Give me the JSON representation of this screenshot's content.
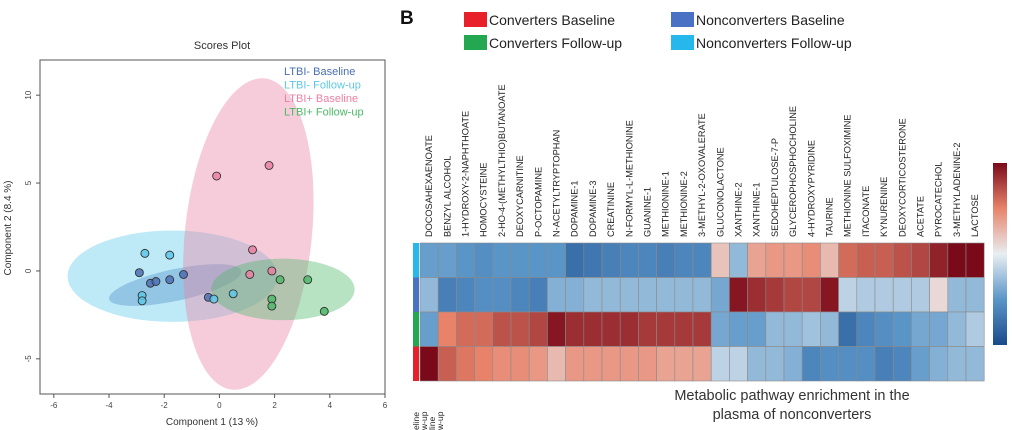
{
  "scores_plot": {
    "title": "Scores Plot",
    "xlabel": "Component 1 (13 %)",
    "ylabel": "Component 2 (8.4 %)"
  },
  "heatmap": {
    "panel_letter": "B",
    "caption_line1": "Metabolic pathway enrichment in the",
    "caption_line2": "plasma of nonconverters",
    "row_label_fragments": [
      "eline",
      "w-up",
      "line",
      "w-up"
    ]
  },
  "chart_data": [
    {
      "type": "scatter",
      "title": "Scores Plot",
      "xlabel": "Component 1 (13 %)",
      "ylabel": "Component 2 (8.4 %)",
      "xlim": [
        -6.5,
        6
      ],
      "ylim": [
        -7,
        12
      ],
      "xticks": [
        -6,
        -4,
        -2,
        0,
        2,
        4,
        6
      ],
      "yticks": [
        -5,
        0,
        5,
        10
      ],
      "grid": false,
      "legend_position": "top-right",
      "series": [
        {
          "name": "LTBI- Baseline",
          "color": "#4a6fb5",
          "points": [
            [
              -2.9,
              -0.1
            ],
            [
              -2.5,
              -0.7
            ],
            [
              -2.3,
              -0.6
            ],
            [
              -1.8,
              -0.5
            ],
            [
              -1.3,
              -0.2
            ],
            [
              -0.4,
              -1.5
            ]
          ],
          "ellipse": {
            "cx": -1.6,
            "cy": -0.8,
            "rx": 2.45,
            "ry": 0.9,
            "angle": -12
          }
        },
        {
          "name": "LTBI- Follow-up",
          "color": "#5cc8ea",
          "points": [
            [
              -2.7,
              1.0
            ],
            [
              -1.8,
              0.9
            ],
            [
              -2.8,
              -1.4
            ],
            [
              -2.8,
              -1.7
            ],
            [
              -0.2,
              -1.6
            ],
            [
              0.5,
              -1.3
            ]
          ],
          "ellipse": {
            "cx": -1.7,
            "cy": -0.3,
            "rx": 3.8,
            "ry": 2.6,
            "angle": 0
          }
        },
        {
          "name": "LTBI+ Baseline",
          "color": "#ec7fa2",
          "points": [
            [
              -0.1,
              5.4
            ],
            [
              1.8,
              6.0
            ],
            [
              1.2,
              1.2
            ],
            [
              1.1,
              -0.2
            ],
            [
              1.9,
              0.0
            ]
          ],
          "ellipse": {
            "cx": 1.05,
            "cy": 2.1,
            "rx": 2.3,
            "ry": 8.9,
            "angle": 6
          }
        },
        {
          "name": "LTBI+ Follow-up",
          "color": "#4cb968",
          "points": [
            [
              2.2,
              -0.5
            ],
            [
              3.2,
              -0.5
            ],
            [
              1.9,
              -1.6
            ],
            [
              1.9,
              -2.0
            ],
            [
              3.8,
              -2.3
            ]
          ],
          "ellipse": {
            "cx": 2.3,
            "cy": -1.05,
            "rx": 2.6,
            "ry": 1.75,
            "angle": 0
          }
        }
      ]
    },
    {
      "type": "heatmap",
      "legend": [
        {
          "label": "Converters Baseline",
          "color": "#e8202a"
        },
        {
          "label": "Converters Follow-up",
          "color": "#23a851"
        },
        {
          "label": "Nonconverters Baseline",
          "color": "#4a72c4"
        },
        {
          "label": "Nonconverters Follow-up",
          "color": "#26b7ec"
        }
      ],
      "columns": [
        "DOCOSAHEXAENOATE",
        "BENZYL ALCOHOL",
        "1-HYDROXY-2-NAPHTHOATE",
        "HOMOCYSTEINE",
        "2-HO-4-(METHYLTHIO)BUTANOATE",
        "DEOXYCARNITINE",
        "P-OCTOPAMINE",
        "N-ACETYLTRYPTOPHAN",
        "DOPAMINE-1",
        "DOPAMINE-3",
        "CREATININE",
        "N-FORMYL-L-METHIONINE",
        "GUANINE-1",
        "METHIONINE-1",
        "METHIONINE-2",
        "3-METHYL-2-OXOVALERATE",
        "GLUCONOLACTONE",
        "XANTHINE-2",
        "XANTHINE-1",
        "SEDOHEPTULOSE-7-P",
        "GLYCEROPHOSPHOCHOLINE",
        "4-HYDROXYPYRIDINE",
        "TAURINE",
        "METHIONINE SULFOXIMINE",
        "ITACONATE",
        "KYNURENINE",
        "DEOXYCORTICOSTERONE",
        "ACETATE",
        "PYROCATECHOL",
        "3-METHYLADENINE-2",
        "LACTOSE"
      ],
      "row_groups": [
        "Nonconverters Follow-up",
        "Nonconverters Baseline",
        "Converters Follow-up",
        "Converters Baseline"
      ],
      "row_group_colors": [
        "#26b7ec",
        "#4a72c4",
        "#23a851",
        "#e8202a"
      ],
      "color_scale": {
        "min": -2,
        "max": 2,
        "low": "#1a4a8c",
        "mid": "#e8eef2",
        "high": "#7a0a1a"
      },
      "values": [
        [
          -0.9,
          -0.9,
          -1.0,
          -1.1,
          -1.0,
          -1.0,
          -1.0,
          -1.0,
          -1.5,
          -1.4,
          -1.3,
          -1.2,
          -1.2,
          -1.3,
          -1.2,
          -1.2,
          0.4,
          -0.6,
          0.7,
          0.8,
          0.8,
          0.9,
          0.5,
          1.2,
          1.3,
          1.3,
          1.4,
          1.5,
          1.8,
          2.0,
          2.0
        ],
        [
          -0.6,
          -1.3,
          -1.2,
          -1.1,
          -1.1,
          -1.2,
          -1.3,
          -0.7,
          -0.7,
          -0.6,
          -0.6,
          -0.6,
          -0.6,
          -0.6,
          -0.6,
          -0.6,
          -0.8,
          1.9,
          1.7,
          1.6,
          1.5,
          1.5,
          1.9,
          -0.3,
          -0.4,
          -0.4,
          -0.4,
          -0.4,
          0.2,
          -0.6,
          -0.6
        ],
        [
          -0.9,
          1.0,
          1.2,
          1.2,
          1.4,
          1.4,
          1.5,
          1.9,
          1.7,
          1.7,
          1.7,
          1.7,
          1.6,
          1.6,
          1.6,
          1.6,
          -0.8,
          -0.9,
          -0.9,
          -0.6,
          -0.6,
          -0.5,
          -0.6,
          -1.5,
          -1.2,
          -1.1,
          -1.0,
          -0.8,
          -0.8,
          -0.6,
          -0.4
        ],
        [
          2.1,
          1.3,
          1.1,
          1.0,
          0.9,
          0.9,
          0.8,
          0.5,
          0.8,
          0.8,
          0.8,
          0.8,
          0.8,
          0.7,
          0.7,
          0.7,
          -0.3,
          -0.3,
          -0.6,
          -0.6,
          -0.7,
          -1.2,
          -1.1,
          -1.1,
          -1.1,
          -1.3,
          -1.2,
          -0.9,
          -0.7,
          -0.6,
          -0.6
        ]
      ]
    }
  ]
}
